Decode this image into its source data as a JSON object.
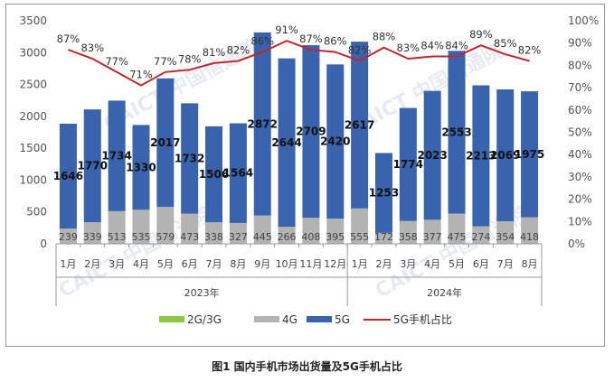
{
  "caption": "图1  国内手机市场出货量及5G手机占比",
  "watermark": "CAICT 中国信通院",
  "chart_data": {
    "type": "bar",
    "stacked": true,
    "categories": [
      "1月",
      "2月",
      "3月",
      "4月",
      "5月",
      "6月",
      "7月",
      "8月",
      "9月",
      "10月",
      "11月",
      "12月",
      "1月",
      "2月",
      "3月",
      "4月",
      "5月",
      "6月",
      "7月",
      "8月"
    ],
    "year_groups": [
      {
        "label": "2023年",
        "count": 12
      },
      {
        "label": "2024年",
        "count": 8
      }
    ],
    "series": [
      {
        "name": "2G/3G",
        "color": "#8dc63f",
        "values": [
          0,
          0,
          0,
          0,
          0,
          0,
          0,
          0,
          0,
          0,
          0,
          0,
          0,
          0,
          0,
          0,
          0,
          0,
          0,
          0
        ]
      },
      {
        "name": "4G",
        "color": "#b3b3b3",
        "values": [
          239,
          339,
          513,
          535,
          579,
          473,
          338,
          327,
          445,
          266,
          408,
          395,
          555,
          172,
          358,
          377,
          475,
          274,
          354,
          418
        ]
      },
      {
        "name": "5G",
        "color": "#3a63ad",
        "values": [
          1646,
          1770,
          1734,
          1330,
          2017,
          1732,
          1506,
          1564,
          2872,
          2644,
          2709,
          2420,
          2617,
          1253,
          1774,
          2023,
          2553,
          2213,
          2069,
          1975
        ]
      },
      {
        "name": "5G手机占比",
        "color": "#c0282d",
        "type": "line",
        "axis": "right",
        "values": [
          87,
          83,
          77,
          71,
          77,
          78,
          81,
          82,
          86,
          91,
          87,
          86,
          82,
          88,
          83,
          84,
          84,
          89,
          85,
          82
        ]
      }
    ],
    "labels_4g": [
      "239",
      "339",
      "513",
      "535",
      "579",
      "473",
      "338",
      "327",
      "445",
      "266",
      "408",
      "395",
      "555",
      "172",
      "358",
      "377",
      "475",
      "274",
      "354",
      "418"
    ],
    "labels_5g": [
      "1646",
      "1770",
      "1734",
      "1330",
      "2017",
      "1732",
      "1506",
      "1564",
      "2872",
      "2644",
      "2709",
      "2420",
      "2617",
      "1253",
      "1774",
      "2023",
      "2553",
      "2213",
      "2069",
      "1975"
    ],
    "labels_pct": [
      "87%",
      "83%",
      "77%",
      "71%",
      "77%",
      "78%",
      "81%",
      "82%",
      "86%",
      "91%",
      "87%",
      "86%",
      "82%",
      "88%",
      "83%",
      "84%",
      "84%",
      "89%",
      "85%",
      "82%"
    ],
    "ylim": [
      0,
      3500
    ],
    "yticks": [
      "0",
      "500",
      "1000",
      "1500",
      "2000",
      "2500",
      "3000",
      "3500"
    ],
    "y2lim": [
      0,
      100
    ],
    "y2ticks": [
      "0%",
      "10%",
      "20%",
      "30%",
      "40%",
      "50%",
      "60%",
      "70%",
      "80%",
      "90%",
      "100%"
    ],
    "legend_position": "bottom",
    "grid": false
  }
}
